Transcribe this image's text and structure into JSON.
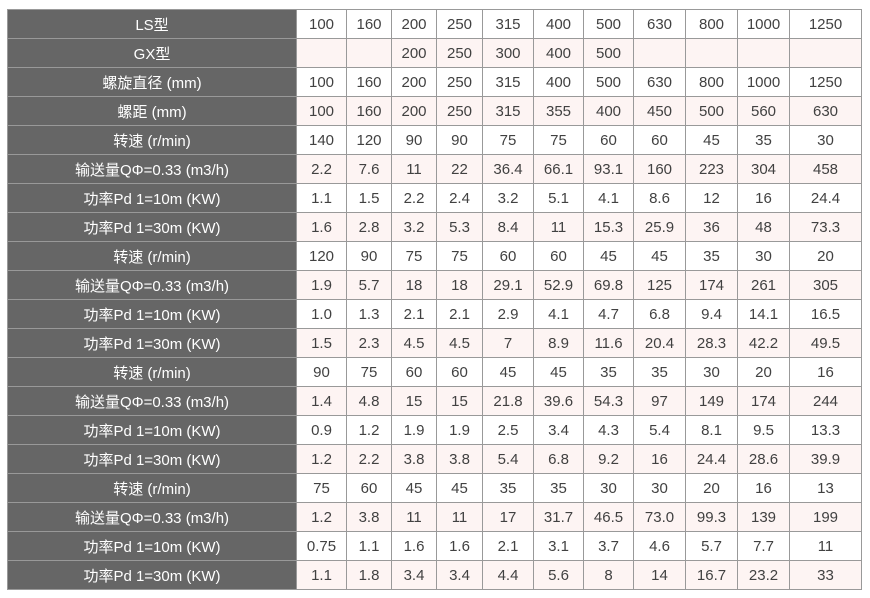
{
  "chart_data": {
    "type": "table",
    "title": "",
    "header_column": "parameter-labels",
    "model_columns": [
      "100",
      "160",
      "200",
      "250",
      "315",
      "400",
      "500",
      "630",
      "800",
      "1000",
      "1250"
    ],
    "rows": [
      {
        "label": "LS型",
        "values": [
          "100",
          "160",
          "200",
          "250",
          "315",
          "400",
          "500",
          "630",
          "800",
          "1000",
          "1250"
        ]
      },
      {
        "label": "GX型",
        "values": [
          "",
          "",
          "200",
          "250",
          "300",
          "400",
          "500",
          "",
          "",
          "",
          ""
        ]
      },
      {
        "label": "螺旋直径 (mm)",
        "values": [
          "100",
          "160",
          "200",
          "250",
          "315",
          "400",
          "500",
          "630",
          "800",
          "1000",
          "1250"
        ]
      },
      {
        "label": "螺距 (mm)",
        "values": [
          "100",
          "160",
          "200",
          "250",
          "315",
          "355",
          "400",
          "450",
          "500",
          "560",
          "630"
        ]
      },
      {
        "label": "转速 (r/min)",
        "values": [
          "140",
          "120",
          "90",
          "90",
          "75",
          "75",
          "60",
          "60",
          "45",
          "35",
          "30"
        ]
      },
      {
        "label": "输送量QΦ=0.33 (m3/h)",
        "values": [
          "2.2",
          "7.6",
          "11",
          "22",
          "36.4",
          "66.1",
          "93.1",
          "160",
          "223",
          "304",
          "458"
        ]
      },
      {
        "label": "功率Pd 1=10m (KW)",
        "values": [
          "1.1",
          "1.5",
          "2.2",
          "2.4",
          "3.2",
          "5.1",
          "4.1",
          "8.6",
          "12",
          "16",
          "24.4"
        ]
      },
      {
        "label": "功率Pd 1=30m (KW)",
        "values": [
          "1.6",
          "2.8",
          "3.2",
          "5.3",
          "8.4",
          "11",
          "15.3",
          "25.9",
          "36",
          "48",
          "73.3"
        ]
      },
      {
        "label": "转速 (r/min)",
        "values": [
          "120",
          "90",
          "75",
          "75",
          "60",
          "60",
          "45",
          "45",
          "35",
          "30",
          "20"
        ]
      },
      {
        "label": "输送量QΦ=0.33 (m3/h)",
        "values": [
          "1.9",
          "5.7",
          "18",
          "18",
          "29.1",
          "52.9",
          "69.8",
          "125",
          "174",
          "261",
          "305"
        ]
      },
      {
        "label": "功率Pd 1=10m (KW)",
        "values": [
          "1.0",
          "1.3",
          "2.1",
          "2.1",
          "2.9",
          "4.1",
          "4.7",
          "6.8",
          "9.4",
          "14.1",
          "16.5"
        ]
      },
      {
        "label": "功率Pd 1=30m (KW)",
        "values": [
          "1.5",
          "2.3",
          "4.5",
          "4.5",
          "7",
          "8.9",
          "11.6",
          "20.4",
          "28.3",
          "42.2",
          "49.5"
        ]
      },
      {
        "label": "转速 (r/min)",
        "values": [
          "90",
          "75",
          "60",
          "60",
          "45",
          "45",
          "35",
          "35",
          "30",
          "20",
          "16"
        ]
      },
      {
        "label": "输送量QΦ=0.33 (m3/h)",
        "values": [
          "1.4",
          "4.8",
          "15",
          "15",
          "21.8",
          "39.6",
          "54.3",
          "97",
          "149",
          "174",
          "244"
        ]
      },
      {
        "label": "功率Pd 1=10m (KW)",
        "values": [
          "0.9",
          "1.2",
          "1.9",
          "1.9",
          "2.5",
          "3.4",
          "4.3",
          "5.4",
          "8.1",
          "9.5",
          "13.3"
        ]
      },
      {
        "label": "功率Pd 1=30m (KW)",
        "values": [
          "1.2",
          "2.2",
          "3.8",
          "3.8",
          "5.4",
          "6.8",
          "9.2",
          "16",
          "24.4",
          "28.6",
          "39.9"
        ]
      },
      {
        "label": "转速 (r/min)",
        "values": [
          "75",
          "60",
          "45",
          "45",
          "35",
          "35",
          "30",
          "30",
          "20",
          "16",
          "13"
        ]
      },
      {
        "label": "输送量QΦ=0.33 (m3/h)",
        "values": [
          "1.2",
          "3.8",
          "11",
          "11",
          "17",
          "31.7",
          "46.5",
          "73.0",
          "99.3",
          "139",
          "199"
        ]
      },
      {
        "label": "功率Pd 1=10m (KW)",
        "values": [
          "0.75",
          "1.1",
          "1.6",
          "1.6",
          "2.1",
          "3.1",
          "3.7",
          "4.6",
          "5.7",
          "7.7",
          "11"
        ]
      },
      {
        "label": "功率Pd 1=30m (KW)",
        "values": [
          "1.1",
          "1.8",
          "3.4",
          "3.4",
          "4.4",
          "5.6",
          "8",
          "14",
          "16.7",
          "23.2",
          "33"
        ]
      }
    ]
  },
  "colors": {
    "label_bg": "#666666",
    "label_text": "#ffffff",
    "border": "#999999",
    "row_bg": "#ffffff",
    "alt_row_bg": "#fdf4f3",
    "cell_text": "#414141",
    "page_bg": "#ffffff"
  },
  "layout": {
    "label_col_width": 289,
    "data_col_widths": [
      50,
      45,
      45,
      46,
      51,
      50,
      50,
      52,
      52,
      52,
      72
    ]
  }
}
